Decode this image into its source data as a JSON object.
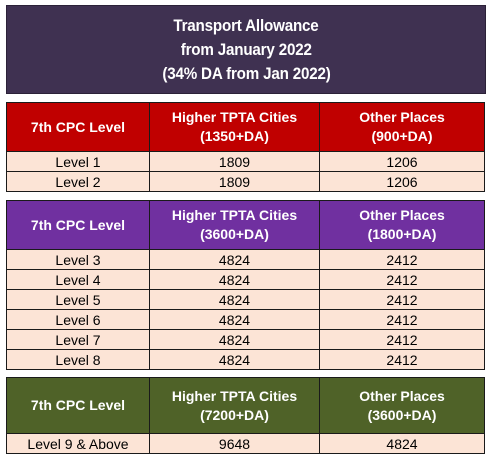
{
  "title": {
    "line1": "Transport Allowance",
    "line2": "from January 2022",
    "line3": "(34% DA from Jan 2022)"
  },
  "tables": [
    {
      "header": {
        "col1": "7th CPC Level",
        "col2_line1": "Higher TPTA Cities",
        "col2_line2": "(1350+DA)",
        "col3_line1": "Other Places",
        "col3_line2": "(900+DA)"
      },
      "header_color": "#c00000",
      "rows": [
        {
          "level": "Level 1",
          "higher": "1809",
          "other": "1206"
        },
        {
          "level": "Level 2",
          "higher": "1809",
          "other": "1206"
        }
      ]
    },
    {
      "header": {
        "col1": "7th CPC Level",
        "col2_line1": "Higher TPTA Cities",
        "col2_line2": "(3600+DA)",
        "col3_line1": "Other Places",
        "col3_line2": "(1800+DA)"
      },
      "header_color": "#7030a0",
      "rows": [
        {
          "level": "Level 3",
          "higher": "4824",
          "other": "2412"
        },
        {
          "level": "Level 4",
          "higher": "4824",
          "other": "2412"
        },
        {
          "level": "Level 5",
          "higher": "4824",
          "other": "2412"
        },
        {
          "level": "Level 6",
          "higher": "4824",
          "other": "2412"
        },
        {
          "level": "Level 7",
          "higher": "4824",
          "other": "2412"
        },
        {
          "level": "Level 8",
          "higher": "4824",
          "other": "2412"
        }
      ]
    },
    {
      "header": {
        "col1": "7th CPC Level",
        "col2_line1": "Higher TPTA Cities",
        "col2_line2": "(7200+DA)",
        "col3_line1": "Other Places",
        "col3_line2": "(3600+DA)"
      },
      "header_color": "#4f6228",
      "rows": [
        {
          "level": "Level 9 & Above",
          "higher": "9648",
          "other": "4824"
        }
      ]
    }
  ],
  "colors": {
    "title_bg": "#3f3151",
    "cell_bg": "#fce4d6"
  }
}
